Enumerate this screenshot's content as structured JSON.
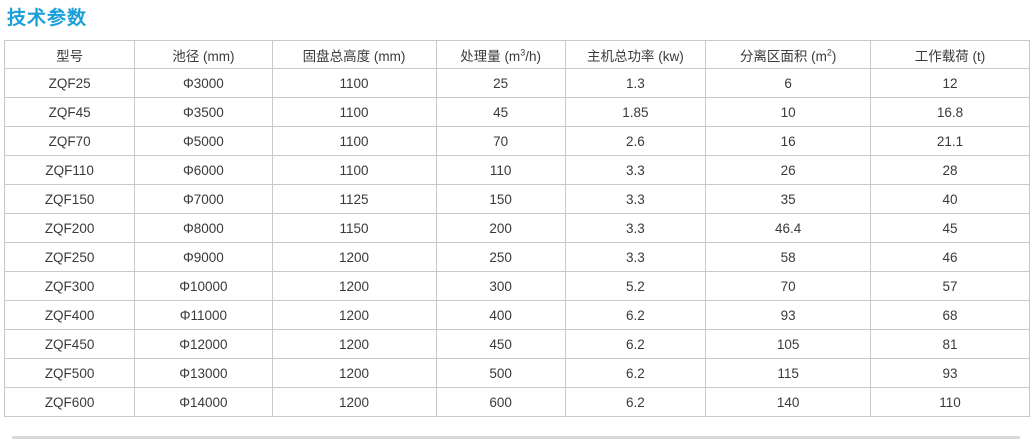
{
  "page": {
    "title": "技术参数",
    "title_color": "#1b9fd8"
  },
  "table": {
    "headers": [
      {
        "text": "型号"
      },
      {
        "text": "池径 (mm)"
      },
      {
        "text": "固盘总高度 (mm)"
      },
      {
        "text": "处理量 (m",
        "sup": "3",
        "tail": "/h)"
      },
      {
        "text": "主机总功率 (kw)"
      },
      {
        "text": "分离区面积 (m",
        "sup": "2",
        "tail": ")"
      },
      {
        "text": "工作载荷 (t)"
      }
    ],
    "rows": [
      [
        "ZQF25",
        "Φ3000",
        "1100",
        "25",
        "1.3",
        "6",
        "12"
      ],
      [
        "ZQF45",
        "Φ3500",
        "1100",
        "45",
        "1.85",
        "10",
        "16.8"
      ],
      [
        "ZQF70",
        "Φ5000",
        "1100",
        "70",
        "2.6",
        "16",
        "21.1"
      ],
      [
        "ZQF110",
        "Φ6000",
        "1100",
        "110",
        "3.3",
        "26",
        "28"
      ],
      [
        "ZQF150",
        "Φ7000",
        "1125",
        "150",
        "3.3",
        "35",
        "40"
      ],
      [
        "ZQF200",
        "Φ8000",
        "1150",
        "200",
        "3.3",
        "46.4",
        "45"
      ],
      [
        "ZQF250",
        "Φ9000",
        "1200",
        "250",
        "3.3",
        "58",
        "46"
      ],
      [
        "ZQF300",
        "Φ10000",
        "1200",
        "300",
        "5.2",
        "70",
        "57"
      ],
      [
        "ZQF400",
        "Φ11000",
        "1200",
        "400",
        "6.2",
        "93",
        "68"
      ],
      [
        "ZQF450",
        "Φ12000",
        "1200",
        "450",
        "6.2",
        "105",
        "81"
      ],
      [
        "ZQF500",
        "Φ13000",
        "1200",
        "500",
        "6.2",
        "115",
        "93"
      ],
      [
        "ZQF600",
        "Φ14000",
        "1200",
        "600",
        "6.2",
        "140",
        "110"
      ]
    ],
    "border_color": "#c9c9c9",
    "text_color": "#3a3a3a"
  }
}
